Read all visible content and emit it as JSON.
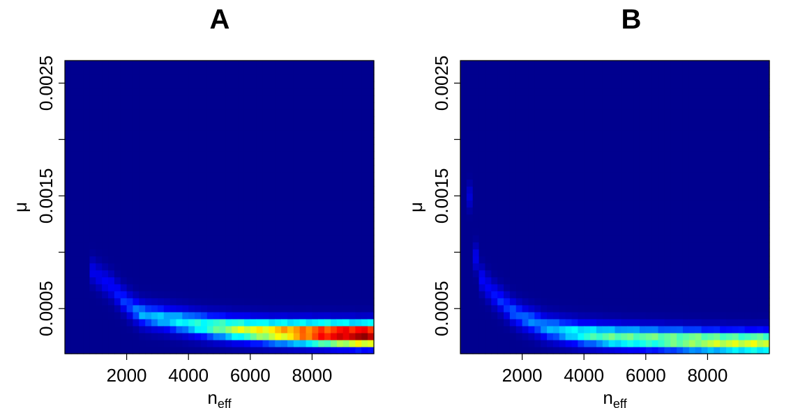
{
  "chart_data": [
    {
      "type": "heatmap",
      "title": "A",
      "xlabel": "n",
      "xlabel_sub": "eff",
      "ylabel": "μ",
      "xlim": [
        0,
        10000
      ],
      "ylim": [
        0.0001,
        0.0027
      ],
      "xticks": [
        2000,
        4000,
        6000,
        8000
      ],
      "xtick_labels": [
        "2000",
        "4000",
        "6000",
        "8000"
      ],
      "yticks": [
        0.0005,
        0.001,
        0.0015,
        0.002,
        0.0025
      ],
      "ytick_labels": [
        "0.0005",
        "",
        "0.0015",
        "",
        "0.0025"
      ],
      "colormap": [
        "#00008f",
        "#0000ff",
        "#00ffff",
        "#ffff00",
        "#ff0000",
        "#800000"
      ],
      "ridge": [
        {
          "x": 800,
          "y": 0.00085,
          "density": 0.15
        },
        {
          "x": 1500,
          "y": 0.0007,
          "density": 0.2
        },
        {
          "x": 2000,
          "y": 0.00055,
          "density": 0.25
        },
        {
          "x": 2500,
          "y": 0.00045,
          "density": 0.33
        },
        {
          "x": 3500,
          "y": 0.0004,
          "density": 0.38
        },
        {
          "x": 4500,
          "y": 0.00035,
          "density": 0.45
        },
        {
          "x": 5500,
          "y": 0.00032,
          "density": 0.55
        },
        {
          "x": 6500,
          "y": 0.0003,
          "density": 0.62
        },
        {
          "x": 7500,
          "y": 0.00029,
          "density": 0.72
        },
        {
          "x": 8500,
          "y": 0.00028,
          "density": 0.85
        },
        {
          "x": 9500,
          "y": 0.00027,
          "density": 0.95
        }
      ]
    },
    {
      "type": "heatmap",
      "title": "B",
      "xlabel": "n",
      "xlabel_sub": "eff",
      "ylabel": "μ",
      "xlim": [
        0,
        10000
      ],
      "ylim": [
        0.0001,
        0.0027
      ],
      "xticks": [
        2000,
        4000,
        6000,
        8000
      ],
      "xtick_labels": [
        "2000",
        "4000",
        "6000",
        "8000"
      ],
      "yticks": [
        0.0005,
        0.001,
        0.0015,
        0.002,
        0.0025
      ],
      "ytick_labels": [
        "0.0005",
        "",
        "0.0015",
        "",
        "0.0025"
      ],
      "colormap": [
        "#00008f",
        "#0000ff",
        "#00ffff",
        "#ffff00",
        "#ff0000",
        "#800000"
      ],
      "ridge": [
        {
          "x": 200,
          "y": 0.002,
          "density": 0.1
        },
        {
          "x": 300,
          "y": 0.0015,
          "density": 0.12
        },
        {
          "x": 400,
          "y": 0.0011,
          "density": 0.15
        },
        {
          "x": 600,
          "y": 0.0008,
          "density": 0.18
        },
        {
          "x": 1000,
          "y": 0.00065,
          "density": 0.2
        },
        {
          "x": 1800,
          "y": 0.00045,
          "density": 0.28
        },
        {
          "x": 2800,
          "y": 0.00033,
          "density": 0.33
        },
        {
          "x": 3800,
          "y": 0.00028,
          "density": 0.42
        },
        {
          "x": 5000,
          "y": 0.00025,
          "density": 0.48
        },
        {
          "x": 6500,
          "y": 0.00023,
          "density": 0.5
        },
        {
          "x": 8000,
          "y": 0.00021,
          "density": 0.55
        },
        {
          "x": 9500,
          "y": 0.0002,
          "density": 0.58
        }
      ]
    }
  ]
}
